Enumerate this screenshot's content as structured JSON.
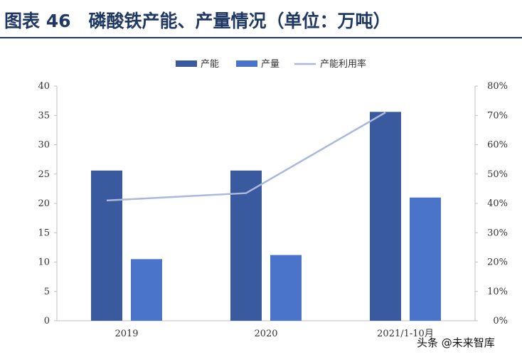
{
  "header": {
    "title": "图表 46　磷酸铁产能、产量情况（单位：万吨）"
  },
  "watermark": "头条 @未来智库",
  "colors": {
    "title": "#1f3864",
    "capacity": "#3a5aa0",
    "output": "#4a74c9",
    "rate": "#a9b8dc",
    "axis": "#bfbfbf"
  },
  "chart_data": {
    "type": "bar",
    "title": "图表 46　磷酸铁产能、产量情况（单位：万吨）",
    "categories": [
      "2019",
      "2020",
      "2021/1-10月"
    ],
    "series": [
      {
        "name": "产能",
        "type": "bar",
        "axis": "left",
        "values": [
          25.6,
          25.6,
          35.6
        ]
      },
      {
        "name": "产量",
        "type": "bar",
        "axis": "left",
        "values": [
          10.5,
          11.2,
          21.0
        ]
      },
      {
        "name": "产能利用率",
        "type": "line",
        "axis": "right",
        "values": [
          0.41,
          0.435,
          0.71
        ]
      }
    ],
    "ylim": [
      0,
      40
    ],
    "yticks": [
      0,
      5,
      10,
      15,
      20,
      25,
      30,
      35,
      40
    ],
    "y2lim": [
      0,
      0.8
    ],
    "y2ticks": [
      "0%",
      "10%",
      "20%",
      "30%",
      "40%",
      "50%",
      "60%",
      "70%",
      "80%"
    ],
    "legend": "top-center",
    "grid": false
  }
}
